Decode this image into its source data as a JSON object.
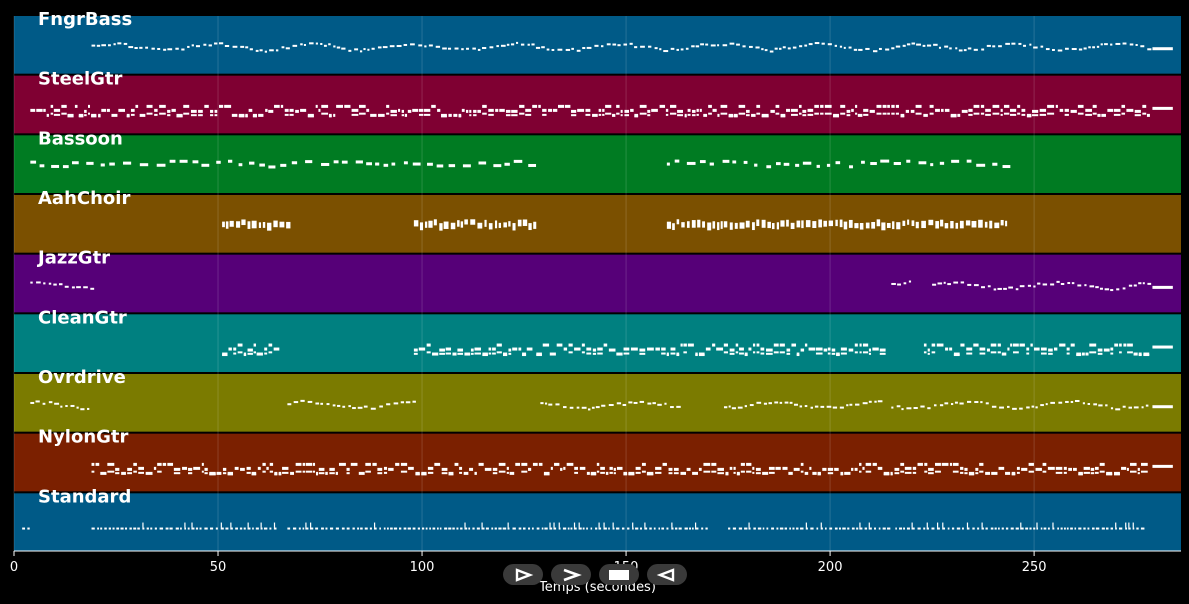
{
  "chart_data": {
    "type": "piano-roll",
    "xlabel": "Temps (secondes)",
    "xlim": [
      0,
      286
    ],
    "xticks": [
      0,
      50,
      100,
      150,
      200,
      250
    ],
    "grid": true,
    "background": "#000000",
    "tracks": [
      {
        "name": "FngrBass",
        "color": "#005a87",
        "segments": [
          [
            19,
            278
          ]
        ],
        "style": "wave",
        "endMark": true
      },
      {
        "name": "SteelGtr",
        "color": "#7f0032",
        "segments": [
          [
            4,
            127
          ],
          [
            127,
            195
          ],
          [
            195,
            213
          ],
          [
            214,
            278
          ]
        ],
        "style": "dense",
        "endMark": true
      },
      {
        "name": "Bassoon",
        "color": "#007b22",
        "segments": [
          [
            4,
            128
          ],
          [
            160,
            244
          ]
        ],
        "style": "sparse",
        "endMark": false
      },
      {
        "name": "AahChoir",
        "color": "#7b5000",
        "segments": [
          [
            51,
            68
          ],
          [
            98,
            128
          ],
          [
            160,
            243
          ]
        ],
        "style": "blocks",
        "endMark": false
      },
      {
        "name": "JazzGtr",
        "color": "#560078",
        "segments": [
          [
            4,
            19
          ],
          [
            215,
            220
          ],
          [
            225,
            278
          ]
        ],
        "style": "wave",
        "endMark": true
      },
      {
        "name": "CleanGtr",
        "color": "#008080",
        "segments": [
          [
            51,
            65
          ],
          [
            98,
            127
          ],
          [
            128,
            213
          ],
          [
            223,
            278
          ]
        ],
        "style": "dense",
        "endMark": true
      },
      {
        "name": "Ovrdrive",
        "color": "#7b7b00",
        "segments": [
          [
            4,
            19
          ],
          [
            67,
            98
          ],
          [
            129,
            164
          ],
          [
            174,
            213
          ],
          [
            215,
            278
          ]
        ],
        "style": "wave",
        "endMark": true
      },
      {
        "name": "NylonGtr",
        "color": "#7b2000",
        "segments": [
          [
            19,
            278
          ]
        ],
        "style": "dense",
        "endMark": true
      },
      {
        "name": "Standard",
        "color": "#005a87",
        "segments": [
          [
            2,
            4
          ],
          [
            19,
            64
          ],
          [
            67,
            170
          ],
          [
            175,
            214
          ],
          [
            216,
            277
          ]
        ],
        "style": "drums",
        "endMark": false
      }
    ]
  },
  "controls": {
    "play_icon": "play-icon",
    "forward_icon": "forward-icon",
    "stop_icon": "stop-icon",
    "rewind_icon": "rewind-icon"
  }
}
